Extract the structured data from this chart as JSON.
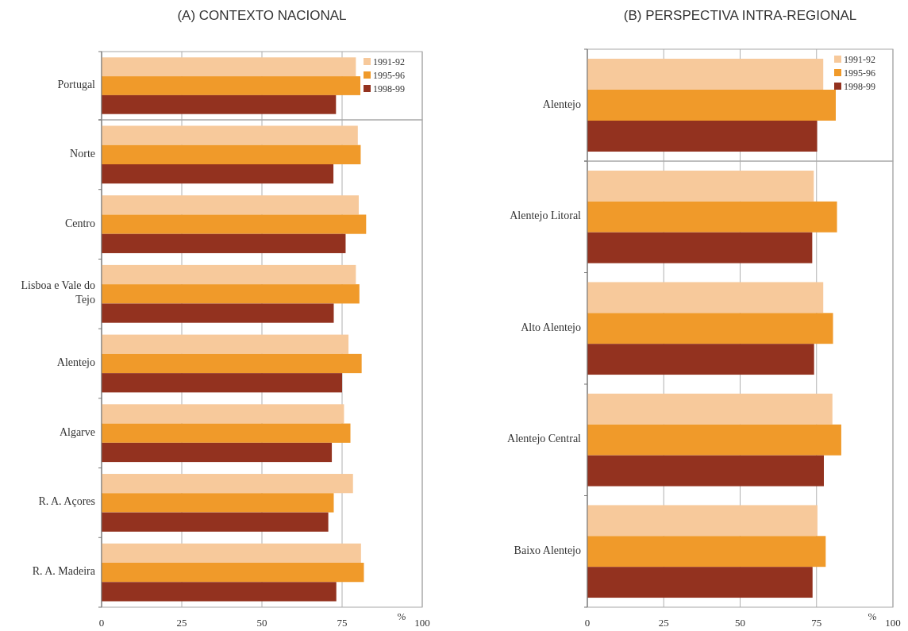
{
  "chart_data": [
    {
      "type": "bar",
      "orientation": "horizontal",
      "title": "(A) CONTEXTO NACIONAL",
      "categories": [
        "Portugal"
      ],
      "xlim": [
        0,
        100
      ],
      "xticks": [
        0,
        25,
        50,
        75,
        100
      ],
      "grid": "x",
      "legend": "top right",
      "tick_labels": "y",
      "series": [
        {
          "name": "1991-92",
          "color": "#f7c99b",
          "values": [
            79.3
          ]
        },
        {
          "name": "1995-96",
          "color": "#f09a2a",
          "values": [
            80.7
          ]
        },
        {
          "name": "1998-99",
          "color": "#93321f",
          "values": [
            73.1
          ]
        }
      ]
    },
    {
      "type": "bar",
      "orientation": "horizontal",
      "xlabel": "%",
      "categories": [
        "Norte",
        "Centro",
        "Lisboa e Vale do Tejo",
        "Alentejo",
        "Algarve",
        "R. A. Açores",
        "R. A. Madeira"
      ],
      "xlim": [
        0,
        100
      ],
      "xticks": [
        0,
        25,
        50,
        75,
        100
      ],
      "grid": "x",
      "series": [
        {
          "color": "#f7c99b",
          "values": [
            79.9,
            80.2,
            79.3,
            77.0,
            75.6,
            78.4,
            80.9
          ]
        },
        {
          "color": "#f09a2a",
          "values": [
            80.8,
            82.5,
            80.4,
            81.1,
            77.6,
            72.4,
            81.8
          ]
        },
        {
          "color": "#93321f",
          "values": [
            72.3,
            76.1,
            72.4,
            75.0,
            71.8,
            70.7,
            73.2
          ]
        }
      ]
    },
    {
      "type": "bar",
      "orientation": "horizontal",
      "title": "(B) PERSPECTIVA INTRA-REGIONAL",
      "categories": [
        "Alentejo"
      ],
      "xlim": [
        0,
        100
      ],
      "xticks": [
        0,
        25,
        50,
        75,
        100
      ],
      "grid": "x",
      "legend": "top right",
      "tick_labels": "y",
      "series": [
        {
          "name": "1991-92",
          "color": "#f7c99b",
          "values": [
            77.2
          ]
        },
        {
          "name": "1995-96",
          "color": "#f09a2a",
          "values": [
            81.3
          ]
        },
        {
          "name": "1998-99",
          "color": "#93321f",
          "values": [
            75.2
          ]
        }
      ]
    },
    {
      "type": "bar",
      "orientation": "horizontal",
      "xlabel": "%",
      "categories": [
        "Alentejo Litoral",
        "Alto Alentejo",
        "Alentejo Central",
        "Baixo Alentejo"
      ],
      "xlim": [
        0,
        100
      ],
      "xticks": [
        0,
        25,
        50,
        75,
        100
      ],
      "grid": "x",
      "series": [
        {
          "color": "#f7c99b",
          "values": [
            74.1,
            77.2,
            80.2,
            75.3
          ]
        },
        {
          "color": "#f09a2a",
          "values": [
            81.7,
            80.4,
            83.1,
            78.0
          ]
        },
        {
          "color": "#93321f",
          "values": [
            73.6,
            74.2,
            77.4,
            73.7
          ]
        }
      ]
    }
  ]
}
